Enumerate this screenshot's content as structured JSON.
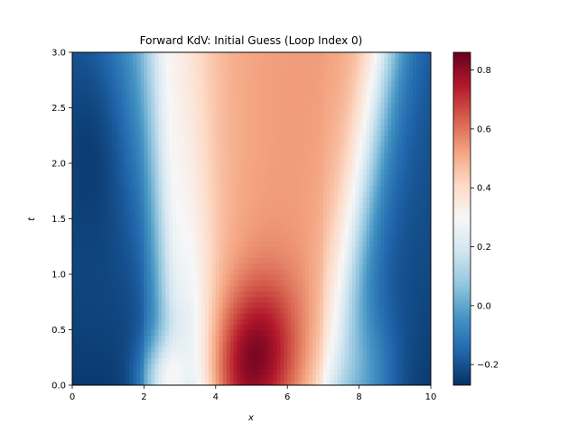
{
  "chart_data": {
    "type": "heatmap",
    "title": "Forward KdV: Initial Guess (Loop Index 0)",
    "xlabel": "x",
    "ylabel": "t",
    "xlim": [
      0,
      10
    ],
    "ylim": [
      0,
      3
    ],
    "x_ticks": [
      "0",
      "2",
      "4",
      "6",
      "8",
      "10"
    ],
    "y_ticks": [
      "0.0",
      "0.5",
      "1.0",
      "1.5",
      "2.0",
      "2.5",
      "3.0"
    ],
    "colormap": "RdBu_r",
    "colorbar": {
      "range": [
        -0.27,
        0.86
      ],
      "ticks": [
        -0.2,
        0.0,
        0.2,
        0.4,
        0.6,
        0.8
      ],
      "tick_labels": [
        "−0.2",
        "0.0",
        "0.2",
        "0.4",
        "0.6",
        "0.8"
      ]
    },
    "grid": false,
    "field_description_points": [
      {
        "x": 0.5,
        "t": 0.1,
        "u": -0.25
      },
      {
        "x": 1.0,
        "t": 2.0,
        "u": -0.22
      },
      {
        "x": 2.5,
        "t": 0.4,
        "u": 0.22
      },
      {
        "x": 3.3,
        "t": 2.5,
        "u": 0.3
      },
      {
        "x": 5.0,
        "t": 0.2,
        "u": 0.84
      },
      {
        "x": 5.6,
        "t": 0.7,
        "u": 0.75
      },
      {
        "x": 5.5,
        "t": 1.8,
        "u": 0.58
      },
      {
        "x": 6.5,
        "t": 2.8,
        "u": 0.55
      },
      {
        "x": 8.0,
        "t": 0.4,
        "u": 0.05
      },
      {
        "x": 9.5,
        "t": 1.3,
        "u": -0.15
      },
      {
        "x": 9.5,
        "t": 2.7,
        "u": -0.05
      }
    ]
  }
}
